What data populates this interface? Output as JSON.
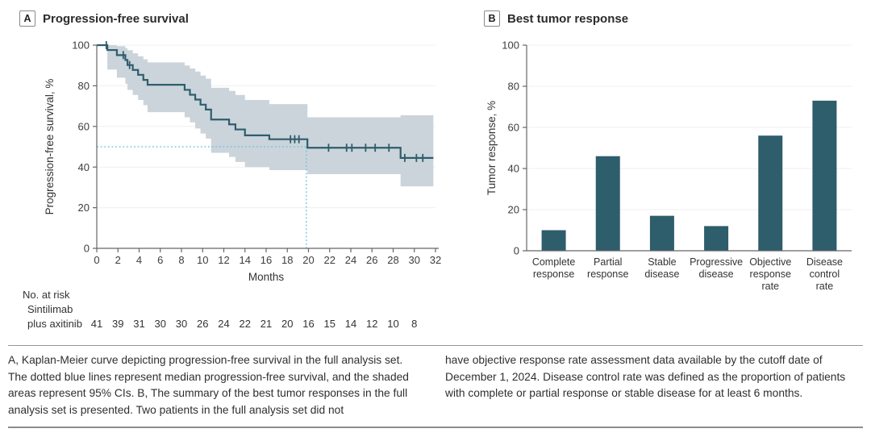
{
  "panels": {
    "a": {
      "label": "A",
      "title": "Progression-free survival"
    },
    "b": {
      "label": "B",
      "title": "Best tumor response"
    }
  },
  "caption": {
    "left": "A, Kaplan-Meier curve depicting progression-free survival in the full analysis set. The dotted blue lines represent median progression-free survival, and the shaded areas represent 95% CIs. B, The summary of the best tumor responses in the full analysis set is presented. Two patients in the full analysis set did not",
    "right": "have objective response rate assessment data available by the cutoff date of December 1, 2024. Disease control rate was defined as the proportion of patients with complete or partial response or stable disease for at least 6 months."
  },
  "colors": {
    "line": "#2E5D6C",
    "ci_band": "#C7D0D8",
    "median_dotted": "#6FC2E0",
    "axis": "#666666",
    "gridline": "#EFEFEF",
    "text": "#333333"
  },
  "chart_data": [
    {
      "type": "line",
      "subtype": "kaplan-meier-step",
      "panel": "A",
      "title": "Progression-free survival",
      "xlabel": "Months",
      "ylabel": "Progression-free survival, %",
      "xlim": [
        0,
        32
      ],
      "ylim": [
        0,
        100
      ],
      "xticks": [
        0,
        2,
        4,
        6,
        8,
        10,
        12,
        14,
        16,
        18,
        20,
        22,
        24,
        26,
        28,
        30,
        32
      ],
      "yticks": [
        0,
        20,
        40,
        60,
        80,
        100
      ],
      "x_end": 31.8,
      "grid": true,
      "line_color": "#2E5D6C",
      "ci_color": "#C7D0D8",
      "median_line_color": "#6FC2E0",
      "median_pfs_months": 19.8,
      "median_pct": 50,
      "series": [
        {
          "name": "Sintilimab plus axitinib",
          "steps": [
            [
              0,
              100
            ],
            [
              1.0,
              97.6
            ],
            [
              1.9,
              95.1
            ],
            [
              2.7,
              92.7
            ],
            [
              2.9,
              90.2
            ],
            [
              3.4,
              87.8
            ],
            [
              3.9,
              85.4
            ],
            [
              4.4,
              82.9
            ],
            [
              4.8,
              80.5
            ],
            [
              8.3,
              78.0
            ],
            [
              8.8,
              75.6
            ],
            [
              9.3,
              73.2
            ],
            [
              9.8,
              70.7
            ],
            [
              10.3,
              68.3
            ],
            [
              10.8,
              63.4
            ],
            [
              12.5,
              61.0
            ],
            [
              13.1,
              58.5
            ],
            [
              14.0,
              55.6
            ],
            [
              16.3,
              53.7
            ],
            [
              19.9,
              49.5
            ],
            [
              28.7,
              44.5
            ]
          ],
          "censor_marks": [
            [
              0.9,
              100
            ],
            [
              2.5,
              95.1
            ],
            [
              3.1,
              90.2
            ],
            [
              18.3,
              53.7
            ],
            [
              18.7,
              53.7
            ],
            [
              19.1,
              53.7
            ],
            [
              21.9,
              49.5
            ],
            [
              23.6,
              49.5
            ],
            [
              24.1,
              49.5
            ],
            [
              25.4,
              49.5
            ],
            [
              26.3,
              49.5
            ],
            [
              27.6,
              49.5
            ],
            [
              29.1,
              44.5
            ],
            [
              30.2,
              44.5
            ],
            [
              30.8,
              44.5
            ]
          ],
          "ci_upper": [
            [
              0,
              100
            ],
            [
              1.0,
              100
            ],
            [
              1.9,
              99.5
            ],
            [
              2.7,
              98.5
            ],
            [
              2.9,
              97.5
            ],
            [
              3.4,
              96
            ],
            [
              3.9,
              94.5
            ],
            [
              4.4,
              93
            ],
            [
              4.8,
              91.5
            ],
            [
              8.3,
              90
            ],
            [
              8.8,
              88.5
            ],
            [
              9.3,
              87
            ],
            [
              9.8,
              85
            ],
            [
              10.3,
              83.5
            ],
            [
              10.8,
              79
            ],
            [
              12.5,
              77.5
            ],
            [
              13.1,
              75.5
            ],
            [
              14.0,
              73
            ],
            [
              16.3,
              71
            ],
            [
              19.9,
              64.5
            ],
            [
              28.7,
              65.5
            ]
          ],
          "ci_lower": [
            [
              0,
              100
            ],
            [
              1.0,
              88
            ],
            [
              1.9,
              84
            ],
            [
              2.7,
              81
            ],
            [
              2.9,
              78
            ],
            [
              3.4,
              75.5
            ],
            [
              3.9,
              73
            ],
            [
              4.4,
              70.5
            ],
            [
              4.8,
              67
            ],
            [
              8.3,
              64.5
            ],
            [
              8.8,
              62
            ],
            [
              9.3,
              59
            ],
            [
              9.8,
              56.5
            ],
            [
              10.3,
              54
            ],
            [
              10.8,
              47
            ],
            [
              12.5,
              45
            ],
            [
              13.1,
              42.5
            ],
            [
              14.0,
              40
            ],
            [
              16.3,
              38.5
            ],
            [
              19.9,
              36.5
            ],
            [
              28.7,
              30.5
            ]
          ]
        }
      ],
      "no_at_risk": {
        "header": "No. at risk",
        "group_lines": [
          "Sintilimab",
          "plus axitinib"
        ],
        "months": [
          0,
          2,
          4,
          6,
          8,
          10,
          12,
          14,
          16,
          18,
          20,
          22,
          24,
          26,
          28,
          30
        ],
        "values": [
          41,
          39,
          31,
          30,
          30,
          26,
          24,
          22,
          21,
          20,
          16,
          15,
          14,
          12,
          10,
          8
        ]
      }
    },
    {
      "type": "bar",
      "panel": "B",
      "title": "Best tumor response",
      "ylabel": "Tumor response, %",
      "ylim": [
        0,
        100
      ],
      "yticks": [
        0,
        20,
        40,
        60,
        80,
        100
      ],
      "grid": true,
      "bar_color": "#2E5D6C",
      "categories": [
        [
          "Complete",
          "response"
        ],
        [
          "Partial",
          "response"
        ],
        [
          "Stable",
          "disease"
        ],
        [
          "Progressive",
          "disease"
        ],
        [
          "Objective",
          "response",
          "rate"
        ],
        [
          "Disease",
          "control",
          "rate"
        ]
      ],
      "values": [
        10,
        46,
        17,
        12,
        56,
        73
      ]
    }
  ]
}
